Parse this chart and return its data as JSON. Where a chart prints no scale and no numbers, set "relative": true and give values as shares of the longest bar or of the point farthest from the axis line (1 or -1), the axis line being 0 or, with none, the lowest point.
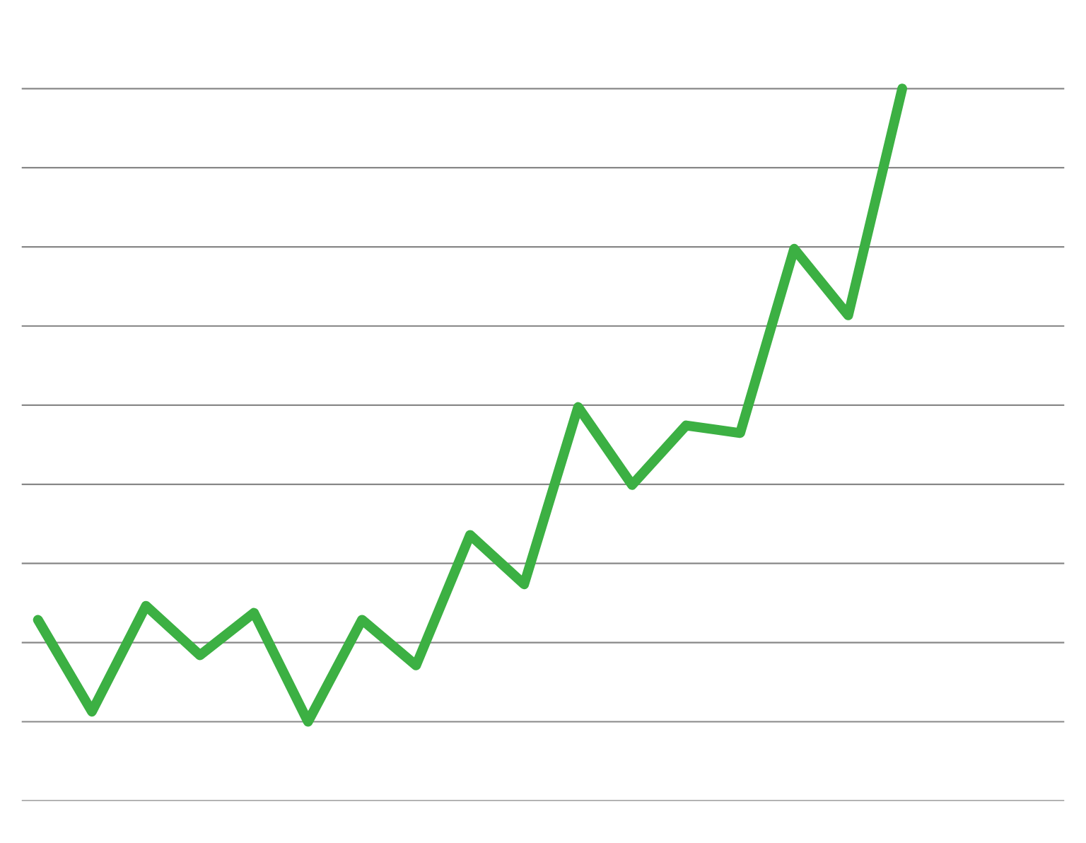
{
  "chart_data": {
    "type": "line",
    "relative": true,
    "grid": "y",
    "categories": [
      null,
      null,
      null,
      null,
      null,
      null,
      null,
      null,
      null,
      null,
      null,
      null,
      null,
      null,
      null,
      null,
      null
    ],
    "series": [
      {
        "color": "#3cb043",
        "values": [
          0.161,
          0.016,
          0.183,
          0.105,
          0.172,
          0,
          0.161,
          0.089,
          0.295,
          0.217,
          0.497,
          0.374,
          0.468,
          0.456,
          0.747,
          0.642,
          1
        ]
      }
    ]
  }
}
